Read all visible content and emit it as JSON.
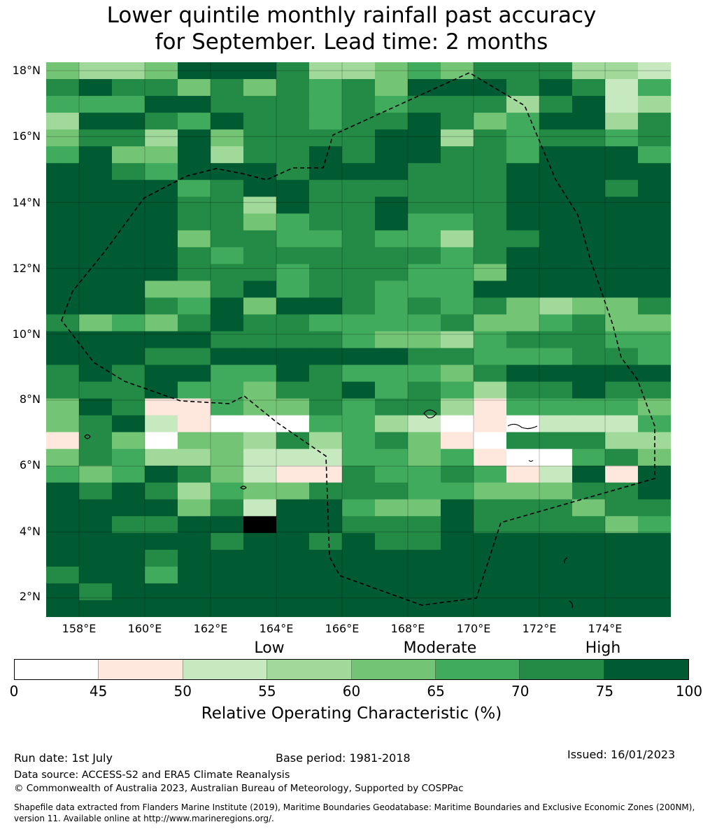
{
  "title": {
    "line1": "Lower quintile monthly rainfall past accuracy",
    "line2": "for September. Lead time: 2 months"
  },
  "map": {
    "lat_labels": [
      "18°N",
      "16°N",
      "14°N",
      "12°N",
      "10°N",
      "8°N",
      "6°N",
      "4°N",
      "2°N"
    ],
    "lon_labels": [
      "158°E",
      "160°E",
      "162°E",
      "164°E",
      "166°E",
      "168°E",
      "170°E",
      "172°E",
      "174°E"
    ],
    "extent": {
      "lon": [
        157.0,
        176.0
      ],
      "lat": [
        1.3,
        18.2
      ]
    },
    "grid_lines": true,
    "boundary_style": "dashed black",
    "land_outline": "solid black"
  },
  "legend": {
    "categories": [
      "Low",
      "Moderate",
      "High"
    ],
    "bin_edges": [
      "0",
      "45",
      "50",
      "55",
      "60",
      "65",
      "70",
      "75",
      "100"
    ],
    "bin_colors": [
      "#ffffff",
      "#fee8de",
      "#c7e9c0",
      "#a1d99b",
      "#74c476",
      "#41ab5d",
      "#238b45",
      "#005a32"
    ],
    "label": "Relative Operating Characteristic (%)"
  },
  "footer": {
    "run_date": "Run date: 1st July",
    "base_period": "Base period: 1981-2018",
    "issued": "Issued: 16/01/2023",
    "data_source": "Data source: ACCESS-S2 and ERA5 Climate Reanalysis",
    "copyright": "© Commonwealth of Australia 2023, Australian Bureau of Meteorology, Supported by COSPPac",
    "shapefile_note": "Shapefile data extracted from Flanders Marine Institute (2019), Maritime Boundaries Geodatabase: Maritime Boundaries and Exclusive Economic Zones (200NM), version 11. Available online at http://www.marineregions.org/."
  },
  "grid_rows": [
    "4334777633454666332",
    "6766464656477767625",
    "5557766656566636723",
    "3776576656676457736",
    "4663746666773656656",
    "5744736676776657775",
    "7765777677766677777",
    "7777567766666677767",
    "7777663766766677777",
    "7777664566755677777",
    "7777466556553667777",
    "7777656666665677777",
    "7777666566655477777",
    "7774467566555777777",
    "7776574776565643446",
    "6454676655556445644",
    "7777766665443566655",
    "7776677777766555665",
    "6767755765554677777",
    "6667554667565366766",
    "4761154465663155554",
    "4672100055320102225",
    "1640443635641066633",
    "4653342225545100564",
    "5457642116556512717",
    "7676354466655444667",
    "7777462775447666466",
    "7766778776667666645",
    "7777767767667777777",
    "7776777777777777777",
    "6775777777777777777",
    "7677777777777777777",
    "7777777777777777777"
  ]
}
